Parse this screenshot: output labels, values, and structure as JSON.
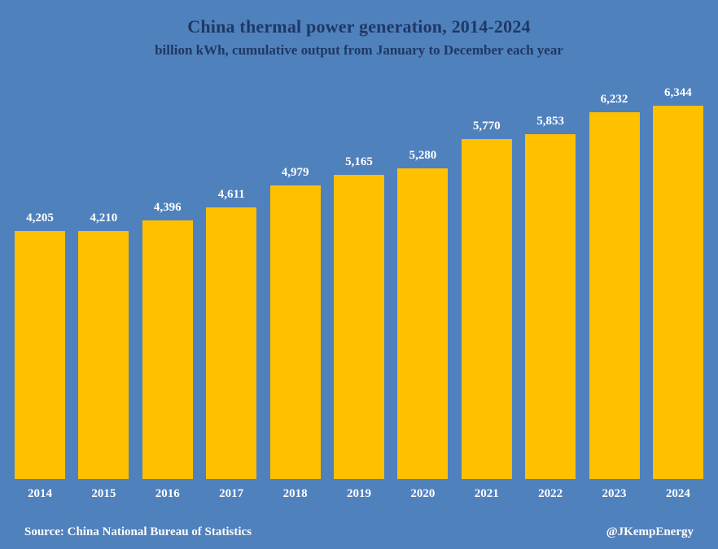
{
  "title": "China thermal power generation, 2014-2024",
  "subtitle": "billion kWh, cumulative output from January to December each year",
  "footer": {
    "source": "Source: China National Bureau of Statistics",
    "handle": "@JKempEnergy"
  },
  "colors": {
    "background": "#4F81BD",
    "bar": "#FFC000",
    "title_text": "#1F3864",
    "label_text": "#FFFFFF"
  },
  "chart_data": {
    "type": "bar",
    "title": "China thermal power generation, 2014-2024",
    "subtitle": "billion kWh, cumulative output from January to December each year",
    "categories": [
      "2014",
      "2015",
      "2016",
      "2017",
      "2018",
      "2019",
      "2020",
      "2021",
      "2022",
      "2023",
      "2024"
    ],
    "values": [
      4205,
      4210,
      4396,
      4611,
      4979,
      5165,
      5280,
      5770,
      5853,
      6232,
      6344
    ],
    "value_labels": [
      "4,205",
      "4,210",
      "4,396",
      "4,611",
      "4,979",
      "5,165",
      "5,280",
      "5,770",
      "5,853",
      "6,232",
      "6,344"
    ],
    "xlabel": "",
    "ylabel": "billion kWh",
    "ylim": [
      0,
      6600
    ],
    "grid": false,
    "legend": false
  }
}
